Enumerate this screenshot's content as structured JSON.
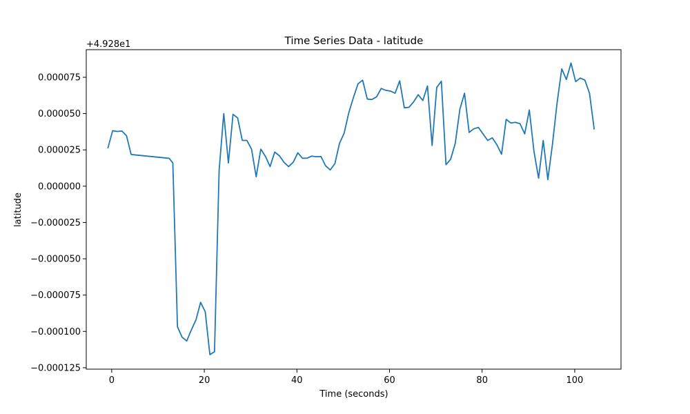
{
  "chart_data": {
    "type": "line",
    "title": "Time Series Data - latitude",
    "xlabel": "Time (seconds)",
    "ylabel": "latitude",
    "offset_label": "+4.928e1",
    "xlim": [
      -5.5,
      110
    ],
    "ylim": [
      -0.000126,
      9.4e-05
    ],
    "x_ticks": [
      0,
      20,
      40,
      60,
      80,
      100
    ],
    "x_tick_labels": [
      "0",
      "20",
      "40",
      "60",
      "80",
      "100"
    ],
    "y_ticks": [
      -0.000125,
      -0.0001,
      -7.5e-05,
      -5e-05,
      -2.5e-05,
      0,
      2.5e-05,
      5e-05,
      7.5e-05
    ],
    "y_tick_labels": [
      "−0.000125",
      "−0.000100",
      "−0.000075",
      "−0.000050",
      "−0.000025",
      "0.000000",
      "0.000025",
      "0.000050",
      "0.000075"
    ],
    "grid": false,
    "line_color": "#1f77b4",
    "series": [
      {
        "x": [
          -0.8,
          0.2,
          1.2,
          2.2,
          3.2,
          4.2,
          12.4,
          13.2,
          14.2,
          15.2,
          16.2,
          17.2,
          18.2,
          19.2,
          20.2,
          21.2,
          22.2,
          23.2,
          24.2,
          25.2,
          26.2,
          27.2,
          28.2,
          29.2,
          30.2,
          31.2,
          32.2,
          33.2,
          34.2,
          35.2,
          36.2,
          37.2,
          38.2,
          39.2,
          40.2,
          41.2,
          42.2,
          43.2,
          44.2,
          45.2,
          46.2,
          47.2,
          48.2,
          49.2,
          50.2,
          51.2,
          52.2,
          53.2,
          54.2,
          55.2,
          56.2,
          57.2,
          58.2,
          59.2,
          60.2,
          61.2,
          62.2,
          63.2,
          64.2,
          65.2,
          66.2,
          67.2,
          68.2,
          69.2,
          70.2,
          71.2,
          72.2,
          73.2,
          74.2,
          75.2,
          76.2,
          77.2,
          78.2,
          79.2,
          80.2,
          81.2,
          82.2,
          83.2,
          84.2,
          85.2,
          86.2,
          87.2,
          88.2,
          89.2,
          90.2,
          91.2,
          92.2,
          93.2,
          94.2,
          95.2,
          96.2,
          97.2,
          98.2,
          99.2,
          100.2,
          101.2,
          102.2,
          103.2,
          104.2
        ],
        "y": [
          2.65e-05,
          3.82e-05,
          3.77e-05,
          3.8e-05,
          3.47e-05,
          2.18e-05,
          1.92e-05,
          1.6e-05,
          -9.68e-05,
          -0.000104,
          -0.0001066,
          -9.9e-05,
          -9.2e-05,
          -8e-05,
          -8.65e-05,
          -0.000116,
          -0.000114,
          1.1e-05,
          5e-05,
          1.6e-05,
          4.95e-05,
          4.7e-05,
          3.15e-05,
          3.15e-05,
          2.55e-05,
          6.5e-06,
          2.55e-05,
          2.05e-05,
          1.35e-05,
          2.35e-05,
          2.1e-05,
          1.65e-05,
          1.35e-05,
          1.65e-05,
          2.3e-05,
          1.92e-05,
          1.93e-05,
          2.07e-05,
          2.03e-05,
          2.04e-05,
          1.4e-05,
          1.12e-05,
          1.55e-05,
          2.95e-05,
          3.65e-05,
          5.05e-05,
          6.1e-05,
          7.05e-05,
          7.3e-05,
          6e-05,
          5.97e-05,
          6.15e-05,
          6.73e-05,
          6.6e-05,
          6.55e-05,
          6.4e-05,
          7.25e-05,
          5.4e-05,
          5.43e-05,
          5.8e-05,
          6.3e-05,
          5.9e-05,
          6.9e-05,
          2.8e-05,
          6.8e-05,
          7.23e-05,
          1.48e-05,
          1.85e-05,
          2.95e-05,
          5.3e-05,
          6.4e-05,
          3.7e-05,
          3.95e-05,
          4.05e-05,
          3.6e-05,
          3.15e-05,
          3.33e-05,
          2.85e-05,
          2.2e-05,
          4.6e-05,
          4.35e-05,
          4.4e-05,
          4.3e-05,
          3.6e-05,
          5.25e-05,
          2.4e-05,
          5.5e-06,
          3.15e-05,
          4.5e-06,
          2.9e-05,
          5.75e-05,
          8.08e-05,
          7.35e-05,
          8.48e-05,
          7.2e-05,
          7.45e-05,
          7.3e-05,
          6.4e-05,
          3.95e-05
        ]
      }
    ]
  }
}
